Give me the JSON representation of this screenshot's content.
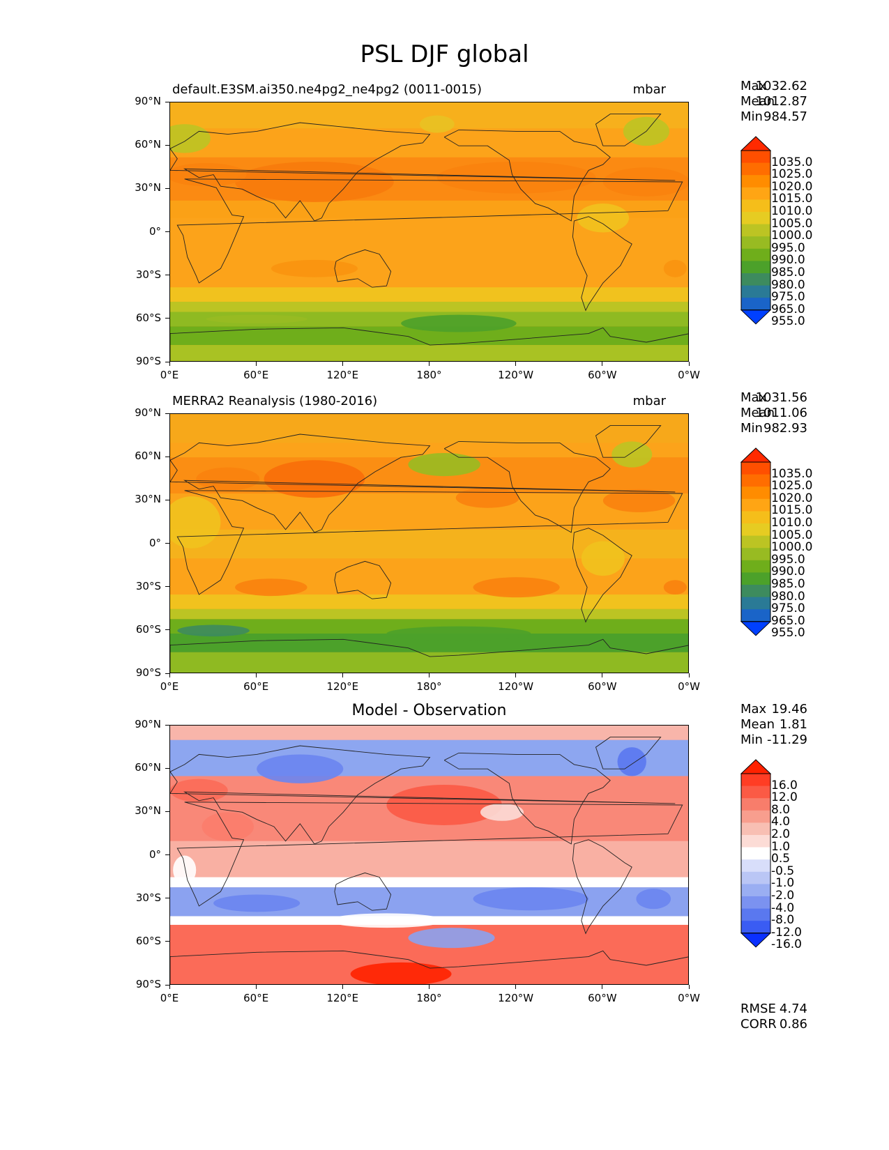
{
  "title": "PSL DJF global",
  "lat_ticks": [
    "90°N",
    "60°N",
    "30°N",
    "0°",
    "30°S",
    "60°S",
    "90°S"
  ],
  "lon_ticks": [
    "0°E",
    "60°E",
    "120°E",
    "180°",
    "120°W",
    "60°W",
    "0°W"
  ],
  "panels": [
    {
      "title": "default.E3SM.ai350.ne4pg2_ne4pg2 (0011-0015)",
      "units": "mbar",
      "stats": [
        {
          "name": "Max",
          "value": "1032.62"
        },
        {
          "name": "Mean",
          "value": "1012.87"
        },
        {
          "name": "Min",
          "value": "984.57"
        }
      ],
      "colorbar": {
        "labels": [
          "1035.0",
          "1025.0",
          "1020.0",
          "1015.0",
          "1010.0",
          "1005.0",
          "1000.0",
          "995.0",
          "990.0",
          "985.0",
          "980.0",
          "975.0",
          "965.0",
          "955.0"
        ],
        "colors": [
          "#ff2a00",
          "#ff4f00",
          "#ff6d00",
          "#ff8c00",
          "#ffa514",
          "#f5be1a",
          "#e6cc22",
          "#bcc423",
          "#98bb22",
          "#6fae1b",
          "#4ca12a",
          "#3d8b5e",
          "#2a7a96",
          "#1a64c8",
          "#0040ff"
        ]
      },
      "fill": "#fca31a",
      "bands": [
        {
          "lat": [
            90,
            72
          ],
          "color": "#f7b01c"
        },
        {
          "lat": [
            52,
            22
          ],
          "color": "#fb8a12"
        },
        {
          "lat": [
            22,
            10
          ],
          "color": "#fba116"
        },
        {
          "lat": [
            -38,
            -48
          ],
          "color": "#f1c21e"
        },
        {
          "lat": [
            -48,
            -55
          ],
          "color": "#bcc423"
        },
        {
          "lat": [
            -55,
            -65
          ],
          "color": "#8fba22"
        },
        {
          "lat": [
            -65,
            -78
          ],
          "color": "#6fae1b"
        },
        {
          "lat": [
            -78,
            -90
          ],
          "color": "#a9c223"
        }
      ]
    },
    {
      "title": "MERRA2 Reanalysis (1980-2016)",
      "units": "mbar",
      "stats": [
        {
          "name": "Max",
          "value": "1031.56"
        },
        {
          "name": "Mean",
          "value": "1011.06"
        },
        {
          "name": "Min",
          "value": "982.93"
        }
      ],
      "colorbar": {
        "labels": [
          "1035.0",
          "1025.0",
          "1020.0",
          "1015.0",
          "1010.0",
          "1005.0",
          "1000.0",
          "995.0",
          "990.0",
          "985.0",
          "980.0",
          "975.0",
          "965.0",
          "955.0"
        ],
        "colors": [
          "#ff2a00",
          "#ff4f00",
          "#ff6d00",
          "#ff8c00",
          "#ffa514",
          "#f5be1a",
          "#e6cc22",
          "#bcc423",
          "#98bb22",
          "#6fae1b",
          "#4ca12a",
          "#3d8b5e",
          "#2a7a96",
          "#1a64c8",
          "#0040ff"
        ]
      },
      "fill": "#fca31a",
      "bands": [
        {
          "lat": [
            90,
            70
          ],
          "color": "#f7a81a"
        },
        {
          "lat": [
            60,
            35
          ],
          "color": "#fb8e13"
        },
        {
          "lat": [
            10,
            -10
          ],
          "color": "#f5b21c"
        },
        {
          "lat": [
            -35,
            -45
          ],
          "color": "#f1c21e"
        },
        {
          "lat": [
            -45,
            -52
          ],
          "color": "#bcc423"
        },
        {
          "lat": [
            -52,
            -62
          ],
          "color": "#6fae1b"
        },
        {
          "lat": [
            -62,
            -75
          ],
          "color": "#4ca12a"
        },
        {
          "lat": [
            -75,
            -90
          ],
          "color": "#8fba22"
        }
      ]
    },
    {
      "title": "Model - Observation",
      "units": "",
      "stats": [
        {
          "name": "Max",
          "value": "19.46"
        },
        {
          "name": "Mean",
          "value": "1.81"
        },
        {
          "name": "Min",
          "value": "-11.29"
        }
      ],
      "colorbar": {
        "labels": [
          "16.0",
          "12.0",
          "8.0",
          "4.0",
          "2.0",
          "1.0",
          "0.5",
          "-0.5",
          "-1.0",
          "-2.0",
          "-4.0",
          "-8.0",
          "-12.0",
          "-16.0"
        ],
        "colors": [
          "#ff2200",
          "#ff3d24",
          "#fb5a45",
          "#f87d6b",
          "#f89e8e",
          "#f8bfb3",
          "#fcdcd6",
          "#ffffff",
          "#d8defa",
          "#bac6f5",
          "#9aaef2",
          "#7b92f0",
          "#5a78ef",
          "#3a5cf3",
          "#0a30ff"
        ]
      },
      "fill": "#f9a598",
      "bands": [
        {
          "lat": [
            90,
            80
          ],
          "color": "#f8b5aa"
        },
        {
          "lat": [
            80,
            55
          ],
          "color": "#8da6f0"
        },
        {
          "lat": [
            55,
            10
          ],
          "color": "#f98878"
        },
        {
          "lat": [
            10,
            -15
          ],
          "color": "#f9b0a3"
        },
        {
          "lat": [
            -15,
            -22
          ],
          "color": "#ffffff"
        },
        {
          "lat": [
            -22,
            -42
          ],
          "color": "#8ba2f0"
        },
        {
          "lat": [
            -42,
            -48
          ],
          "color": "#ffffff"
        },
        {
          "lat": [
            -48,
            -90
          ],
          "color": "#fb6b58"
        }
      ]
    }
  ],
  "metrics": [
    {
      "name": "RMSE",
      "value": "4.74"
    },
    {
      "name": "CORR",
      "value": "0.86"
    }
  ]
}
